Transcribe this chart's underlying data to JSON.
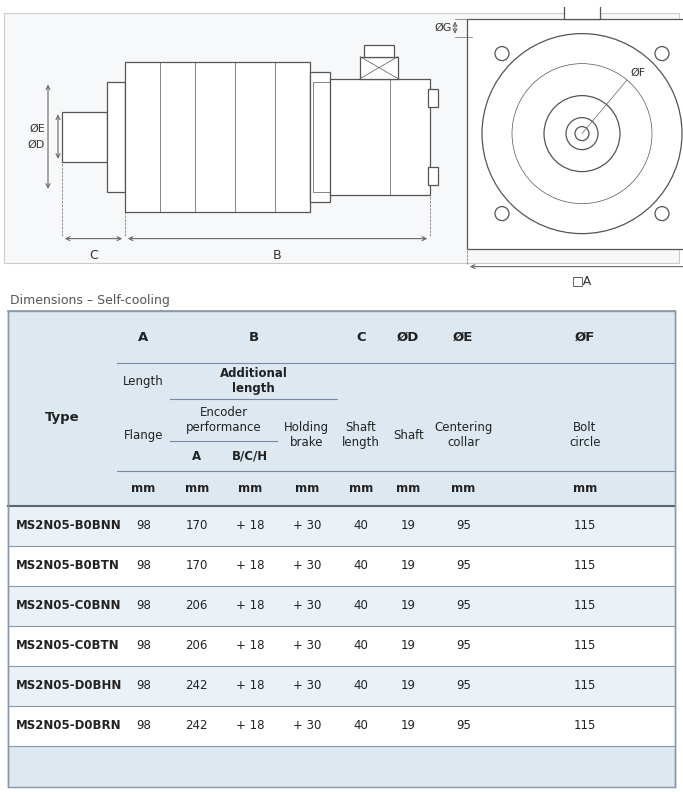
{
  "title": "Dimensions – Self-cooling",
  "bg_color": "#ffffff",
  "table_header_bg": "#dde8f0",
  "table_row_bg_odd": "#eaf2f8",
  "table_row_bg_even": "#ffffff",
  "rows": [
    [
      "MS2N05-B0BNN",
      "98",
      "170",
      "+ 18",
      "+ 30",
      "40",
      "19",
      "95",
      "115"
    ],
    [
      "MS2N05-B0BTN",
      "98",
      "170",
      "+ 18",
      "+ 30",
      "40",
      "19",
      "95",
      "115"
    ],
    [
      "MS2N05-C0BNN",
      "98",
      "206",
      "+ 18",
      "+ 30",
      "40",
      "19",
      "95",
      "115"
    ],
    [
      "MS2N05-C0BTN",
      "98",
      "206",
      "+ 18",
      "+ 30",
      "40",
      "19",
      "95",
      "115"
    ],
    [
      "MS2N05-D0BHN",
      "98",
      "242",
      "+ 18",
      "+ 30",
      "40",
      "19",
      "95",
      "115"
    ],
    [
      "MS2N05-D0BRN",
      "98",
      "242",
      "+ 18",
      "+ 30",
      "40",
      "19",
      "95",
      "115"
    ]
  ],
  "diagram_border": "#cccccc",
  "drawing_color": "#555555",
  "dim_color": "#666666",
  "text_color": "#333333"
}
